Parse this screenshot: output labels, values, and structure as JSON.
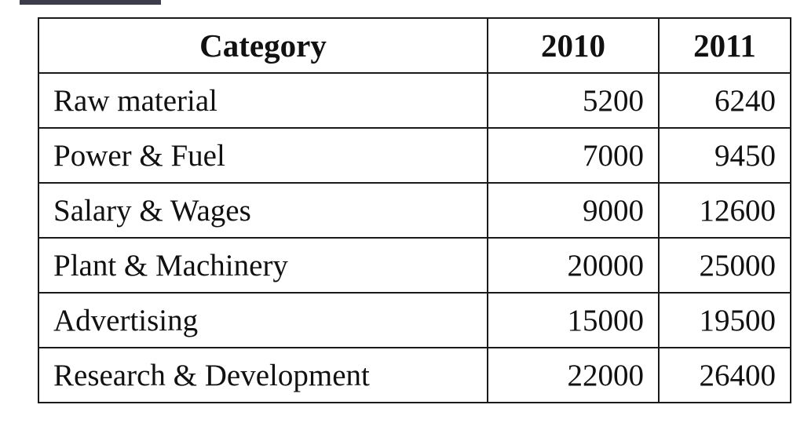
{
  "table": {
    "headers": [
      "Category",
      "2010",
      "2011"
    ],
    "rows": [
      [
        "Raw material",
        "5200",
        "6240"
      ],
      [
        "Power & Fuel",
        "7000",
        "9450"
      ],
      [
        "Salary & Wages",
        "9000",
        "12600"
      ],
      [
        "Plant & Machinery",
        "20000",
        "25000"
      ],
      [
        "Advertising",
        "15000",
        "19500"
      ],
      [
        "Research & Development",
        "22000",
        "26400"
      ]
    ]
  }
}
